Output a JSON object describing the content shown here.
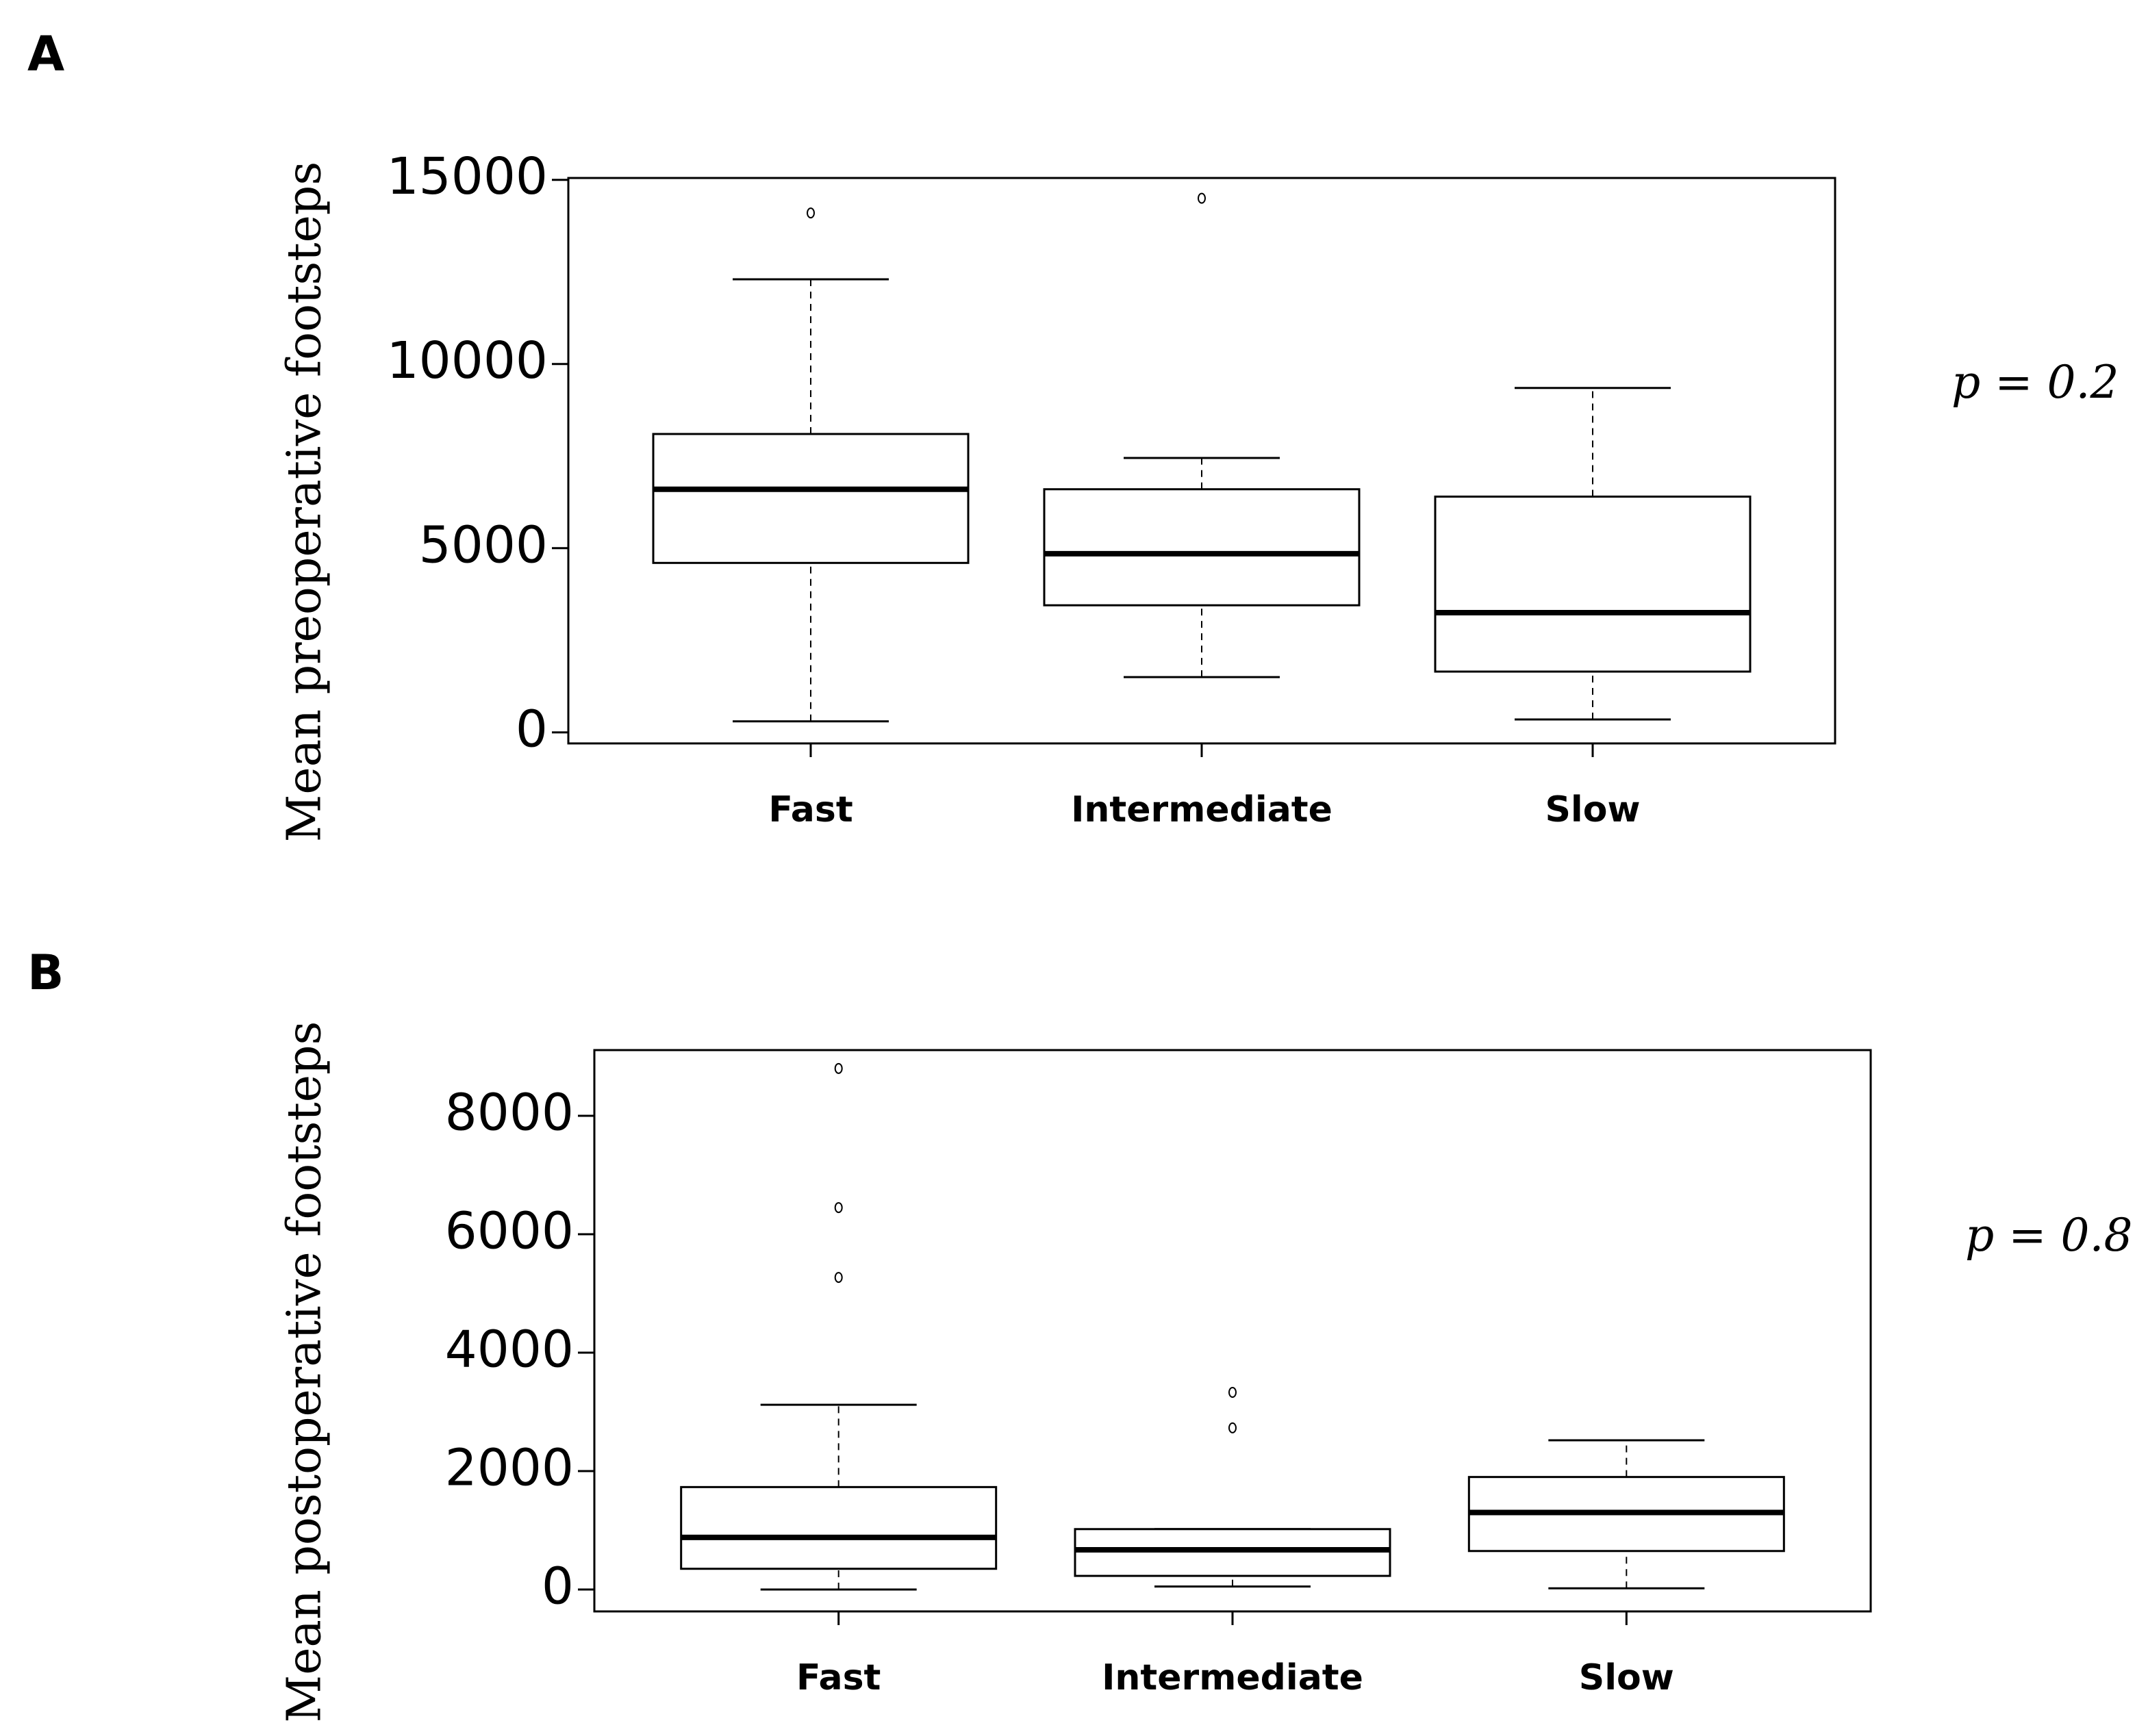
{
  "chart_data": [
    {
      "type": "box",
      "panel": "A",
      "y_label": "Mean preoperative footsteps",
      "categories": [
        "Fast",
        "Intermediate",
        "Slow"
      ],
      "boxes": [
        [
          300,
          4600,
          6600,
          8100,
          12300
        ],
        [
          1500,
          3450,
          4850,
          6600,
          7450
        ],
        [
          350,
          1650,
          3250,
          6400,
          9350
        ]
      ],
      "outliers": [
        [
          14100
        ],
        [
          14500
        ],
        []
      ],
      "ylim": [
        -300,
        15050
      ],
      "yticks": [
        0,
        5000,
        10000,
        15000
      ],
      "annotation": "p = 0.2"
    },
    {
      "type": "box",
      "panel": "B",
      "y_label": "Mean postoperative footsteps",
      "categories": [
        "Fast",
        "Intermediate",
        "Slow"
      ],
      "boxes": [
        [
          0,
          350,
          880,
          1730,
          3120
        ],
        [
          50,
          230,
          670,
          1020,
          1020
        ],
        [
          20,
          650,
          1300,
          1900,
          2520
        ]
      ],
      "outliers": [
        [
          8800,
          6450,
          5270
        ],
        [
          3330,
          2730
        ],
        []
      ],
      "ylim": [
        -370,
        9110
      ],
      "yticks": [
        0,
        2000,
        4000,
        6000,
        8000
      ],
      "annotation": "p = 0.8"
    }
  ]
}
